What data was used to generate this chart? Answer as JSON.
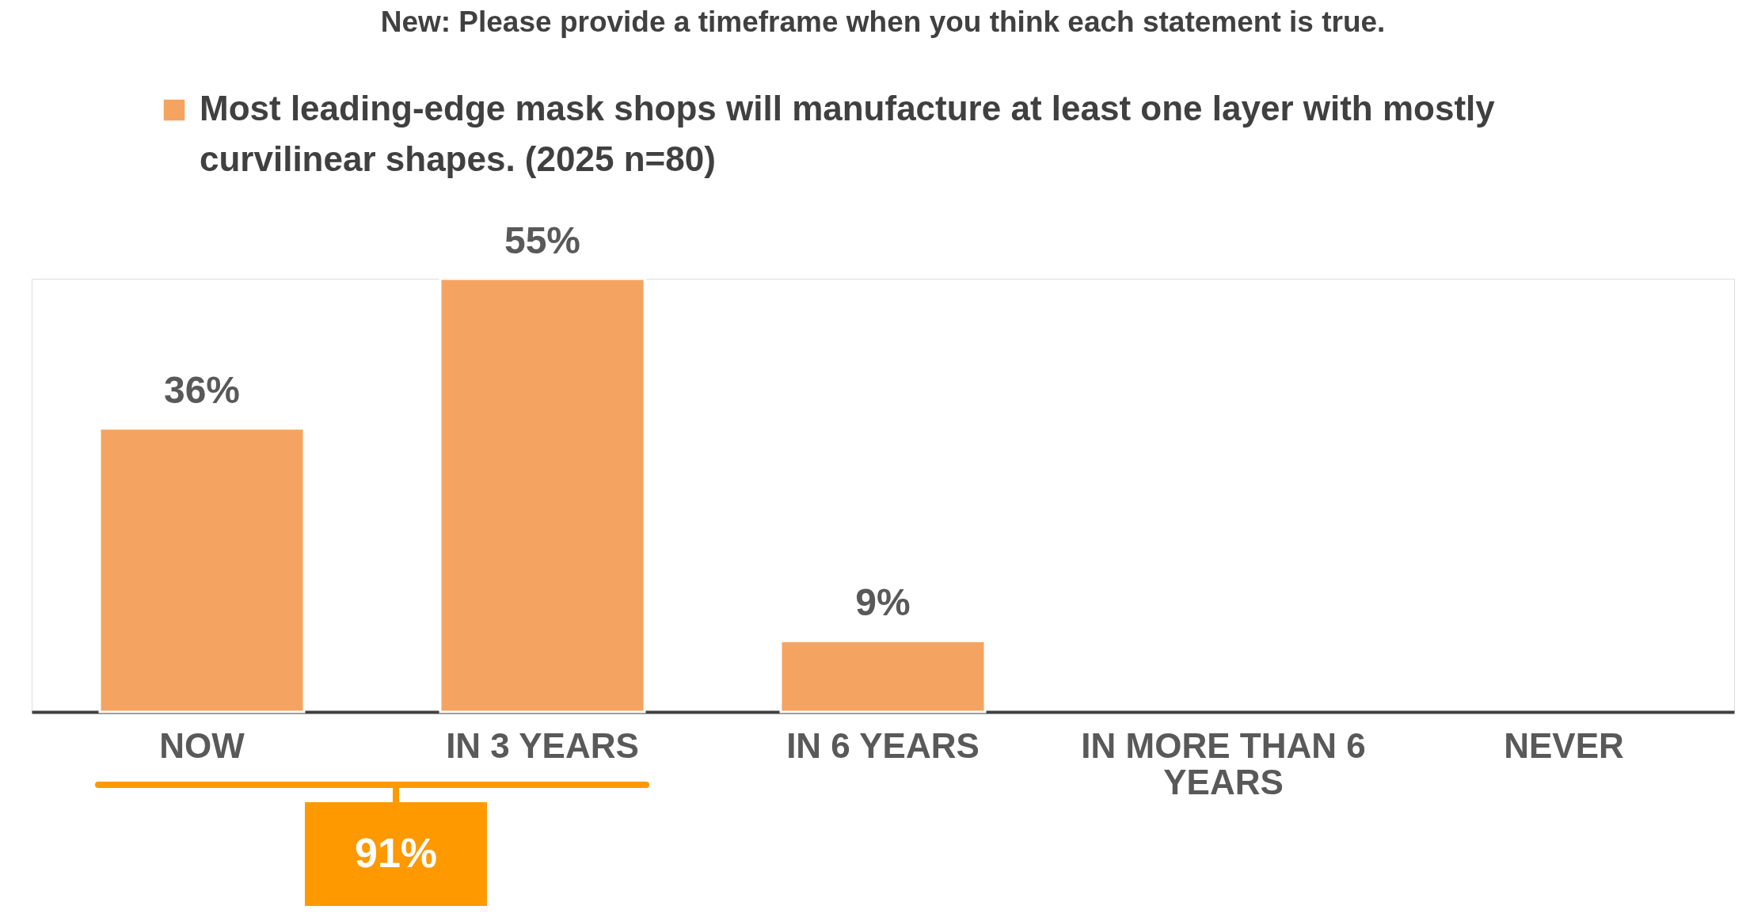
{
  "chart_data": {
    "type": "bar",
    "title": "New: Please provide a timeframe when you think each statement is true.",
    "categories": [
      "NOW",
      "IN 3 YEARS",
      "IN 6 YEARS",
      "IN MORE THAN 6 YEARS",
      "NEVER"
    ],
    "series": [
      {
        "name": "Most leading-edge mask shops will manufacture at least one layer with mostly curvilinear shapes. (2025 n=80)",
        "color": "#f4a460",
        "values": [
          36,
          55,
          9,
          null,
          null
        ],
        "value_labels": [
          "36%",
          "55%",
          "9%",
          null,
          null
        ]
      }
    ],
    "legend": "top",
    "annotations": [
      "91%"
    ]
  }
}
